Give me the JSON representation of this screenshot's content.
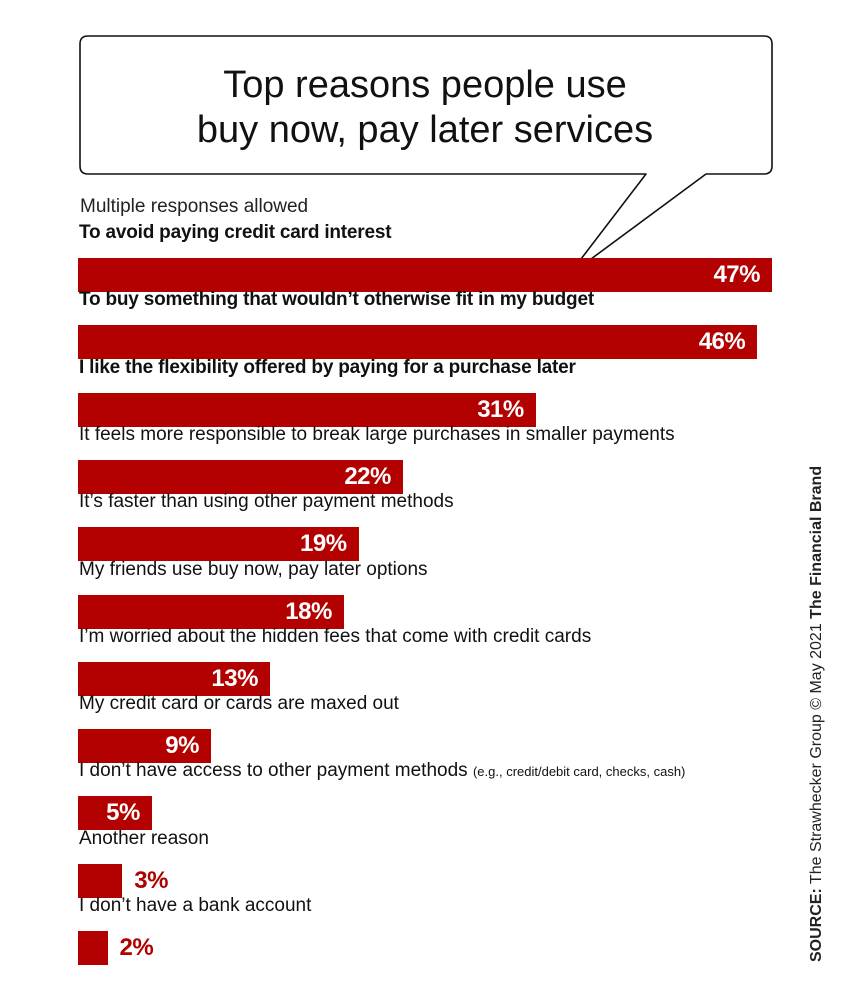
{
  "chart_data": {
    "type": "bar",
    "orientation": "horizontal",
    "title": [
      "Top reasons people use",
      "buy now, pay later services"
    ],
    "subtitle": "Multiple responses allowed",
    "categories": [
      {
        "label": "To avoid paying credit card interest",
        "note": ""
      },
      {
        "label": "To buy something that wouldn’t otherwise fit in my budget",
        "note": ""
      },
      {
        "label": "I like the flexibility offered by paying for a purchase later",
        "note": ""
      },
      {
        "label": "It feels more responsible to break large purchases in smaller payments",
        "note": ""
      },
      {
        "label": "It’s faster than using other payment methods",
        "note": ""
      },
      {
        "label": "My friends use buy now, pay later options",
        "note": ""
      },
      {
        "label": "I’m worried about the hidden fees that come with credit cards",
        "note": ""
      },
      {
        "label": "My credit card or cards are maxed out",
        "note": ""
      },
      {
        "label": "I don’t have access to other payment methods",
        "note": "(e.g., credit/debit card, checks, cash)"
      },
      {
        "label": "Another reason",
        "note": ""
      },
      {
        "label": "I don’t have a bank account",
        "note": ""
      }
    ],
    "values": [
      47,
      46,
      31,
      22,
      19,
      18,
      13,
      9,
      5,
      3,
      2
    ],
    "value_labels": [
      "47%",
      "46%",
      "31%",
      "22%",
      "19%",
      "18%",
      "13%",
      "9%",
      "5%",
      "3%",
      "2%"
    ],
    "bold_categories": [
      0,
      1,
      2
    ],
    "xlim": [
      0,
      47
    ],
    "grid": false,
    "legend": "none",
    "bar_color": "#b30000",
    "value_label_color_outside": "#b00000"
  },
  "source": {
    "label": "SOURCE:",
    "text": " The Strawhecker Group © May 2021 ",
    "brand": "The Financial Brand"
  }
}
